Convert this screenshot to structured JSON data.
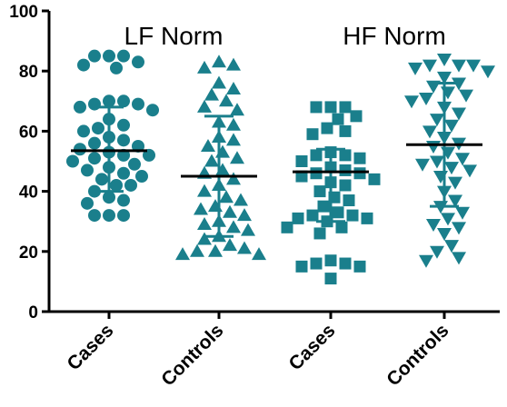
{
  "chart_data": {
    "type": "scatter",
    "ylim": [
      0,
      100
    ],
    "yticks": [
      0,
      20,
      40,
      60,
      80,
      100
    ],
    "annotations": [
      "LF Norm",
      "HF Norm"
    ],
    "colors": {
      "marker": "#1a7f8c",
      "errorbar": "#1a7f8c",
      "mean": "#000000",
      "axis": "#000000"
    },
    "categories": [
      "Cases",
      "Controls",
      "Cases",
      "Controls"
    ],
    "groups": [
      {
        "label": "Cases",
        "marker": "circle",
        "mean": 53.5,
        "sd_low": 40,
        "sd_high": 68,
        "points": [
          85,
          85,
          85,
          83,
          82,
          81,
          70,
          70,
          69,
          69,
          68,
          67,
          64,
          62,
          61,
          60,
          58,
          57,
          56,
          55,
          54,
          53,
          52,
          52,
          51,
          50,
          49,
          48,
          47,
          46,
          45,
          44,
          42,
          42,
          40,
          38,
          37,
          36,
          32,
          32,
          32
        ]
      },
      {
        "label": "Controls",
        "marker": "triangle-up",
        "mean": 45,
        "sd_low": 25,
        "sd_high": 65,
        "points": [
          83,
          82,
          81,
          76,
          74,
          72,
          70,
          68,
          67,
          63,
          62,
          58,
          57,
          55,
          53,
          51,
          50,
          47,
          46,
          44,
          42,
          40,
          38,
          37,
          35,
          34,
          33,
          32,
          30,
          29,
          28,
          27,
          25,
          24,
          22,
          21,
          20,
          20,
          19,
          19
        ]
      },
      {
        "label": "Cases",
        "marker": "square",
        "mean": 46.5,
        "sd_low": 30,
        "sd_high": 54,
        "points": [
          68,
          68,
          68,
          65,
          64,
          61,
          60,
          59,
          53,
          52,
          52,
          51,
          50,
          48,
          47,
          46,
          46,
          45,
          44,
          43,
          42,
          40,
          38,
          37,
          35,
          33,
          32,
          32,
          31,
          31,
          30,
          28,
          28,
          26,
          17,
          16,
          16,
          15,
          15,
          11
        ]
      },
      {
        "label": "Controls",
        "marker": "triangle-down",
        "mean": 55.5,
        "sd_low": 35,
        "sd_high": 76,
        "points": [
          84,
          82,
          82,
          82,
          81,
          80,
          78,
          76,
          75,
          73,
          72,
          71,
          70,
          68,
          66,
          64,
          62,
          60,
          58,
          56,
          55,
          53,
          51,
          50,
          49,
          48,
          47,
          45,
          43,
          40,
          37,
          35,
          33,
          31,
          29,
          28,
          26,
          22,
          20,
          18,
          17
        ]
      }
    ]
  }
}
